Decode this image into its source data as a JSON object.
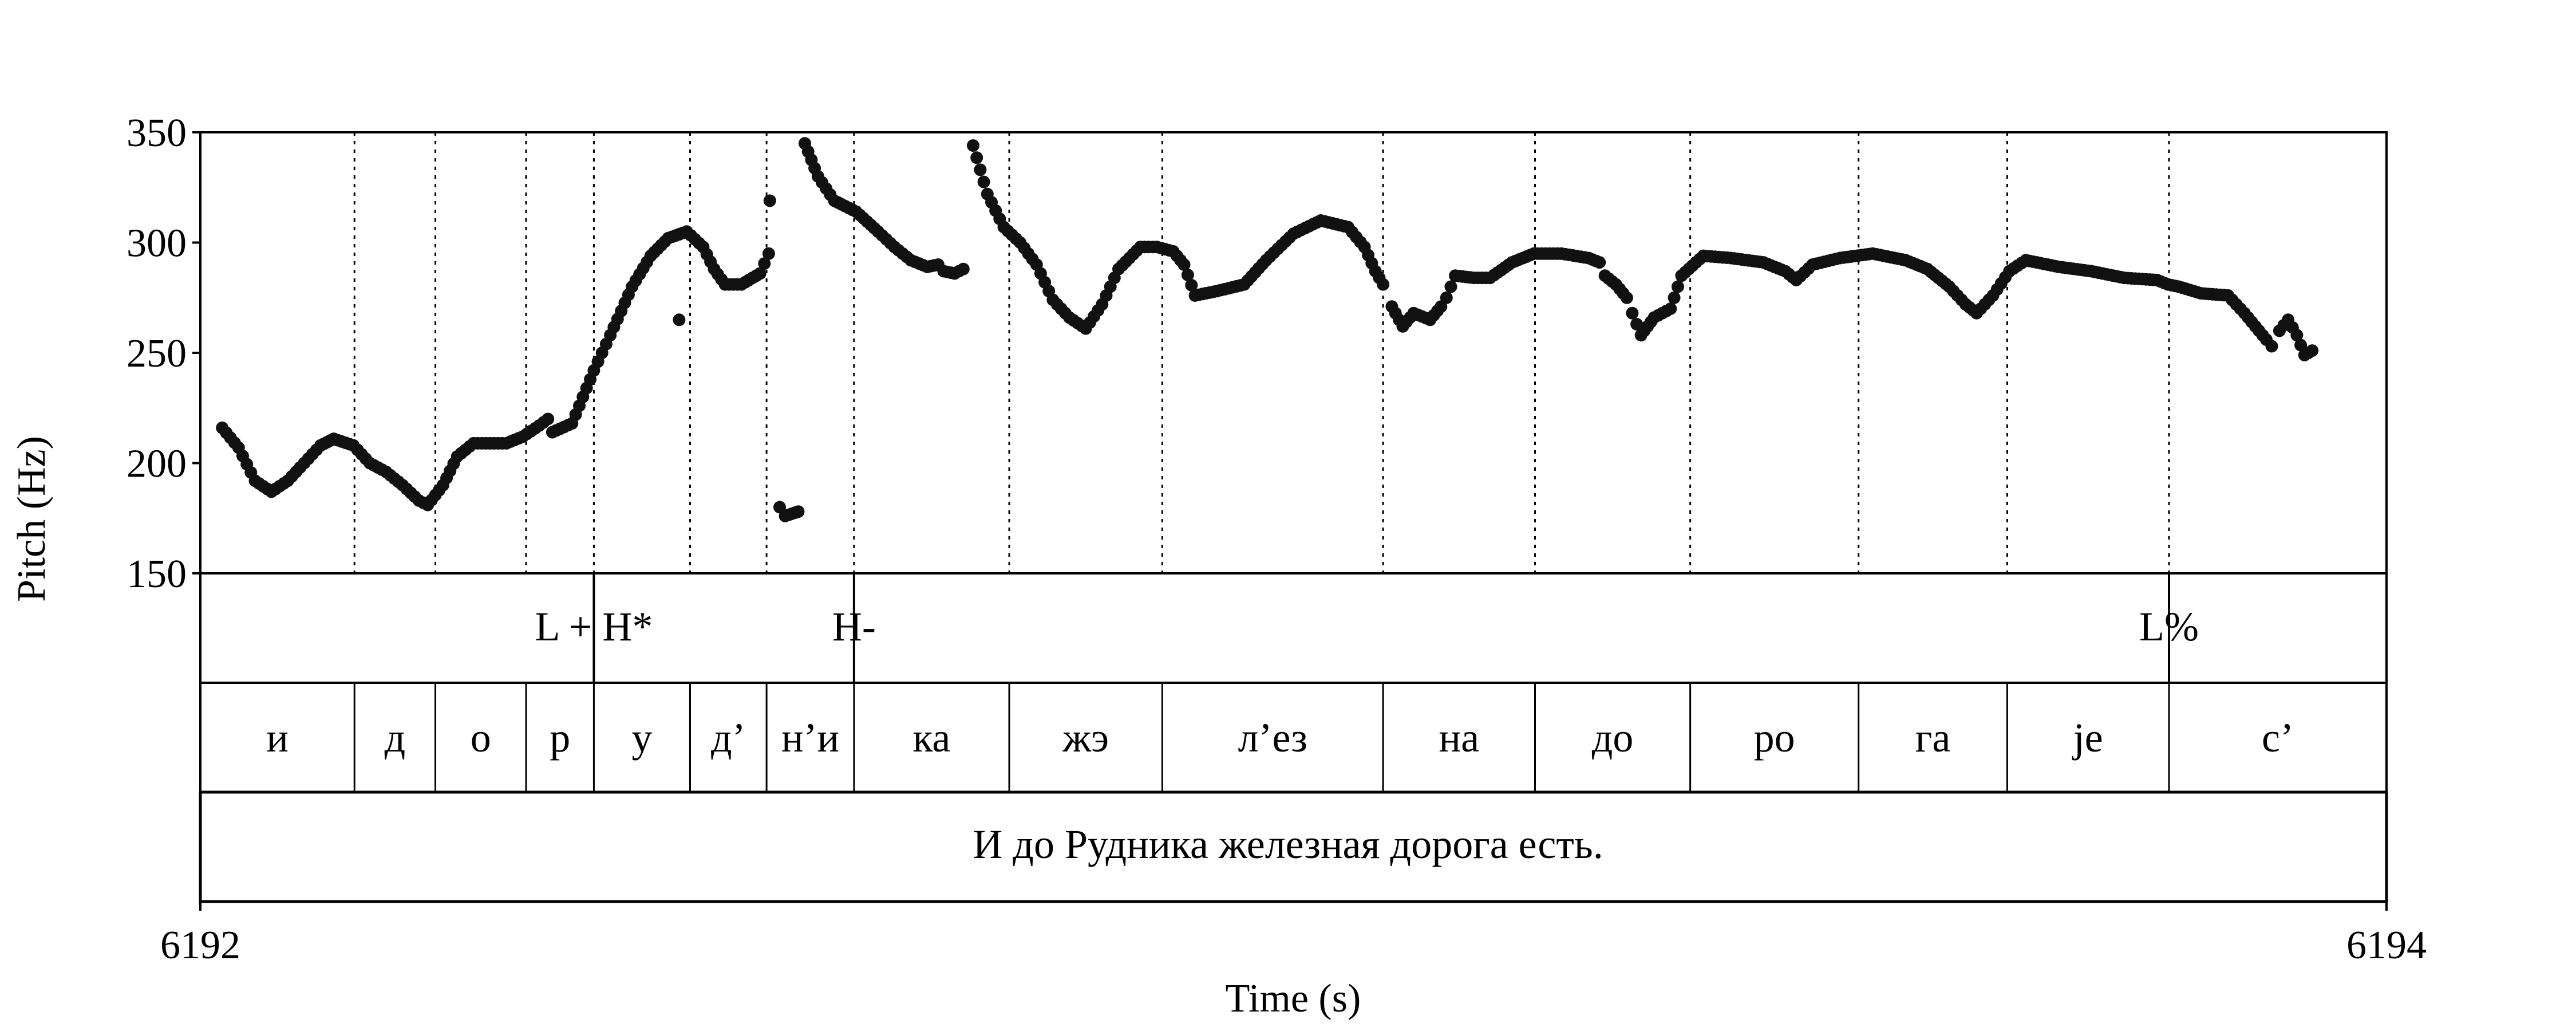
{
  "chart_data": {
    "type": "scatter",
    "xlabel": "Time (s)",
    "ylabel": "Pitch (Hz)",
    "xlim": [
      6192,
      6194
    ],
    "ylim": [
      150,
      350
    ],
    "x_ticks": [
      {
        "value": 6192,
        "label": "6192"
      },
      {
        "value": 6194,
        "label": "6194"
      }
    ],
    "y_ticks": [
      {
        "value": 150,
        "label": "150"
      },
      {
        "value": 200,
        "label": "200"
      },
      {
        "value": 250,
        "label": "250"
      },
      {
        "value": 300,
        "label": "300"
      },
      {
        "value": 350,
        "label": "350"
      }
    ],
    "boundaries": [
      6192.141,
      6192.215,
      6192.298,
      6192.36,
      6192.448,
      6192.518,
      6192.598,
      6192.74,
      6192.88,
      6193.082,
      6193.221,
      6193.363,
      6193.517,
      6193.653,
      6193.801
    ],
    "tones": [
      {
        "t": 6192.36,
        "label": "L + H*"
      },
      {
        "t": 6192.598,
        "label": "H-"
      },
      {
        "t": 6193.801,
        "label": "L%"
      }
    ],
    "syllables": [
      {
        "start": 6192.0,
        "end": 6192.141,
        "label": "и"
      },
      {
        "start": 6192.141,
        "end": 6192.215,
        "label": "д"
      },
      {
        "start": 6192.215,
        "end": 6192.298,
        "label": "о"
      },
      {
        "start": 6192.298,
        "end": 6192.36,
        "label": "р"
      },
      {
        "start": 6192.36,
        "end": 6192.448,
        "label": "у"
      },
      {
        "start": 6192.448,
        "end": 6192.518,
        "label": "д’"
      },
      {
        "start": 6192.518,
        "end": 6192.598,
        "label": "н’и"
      },
      {
        "start": 6192.598,
        "end": 6192.74,
        "label": "ка"
      },
      {
        "start": 6192.74,
        "end": 6192.88,
        "label": "жэ"
      },
      {
        "start": 6192.88,
        "end": 6193.082,
        "label": "л’ез"
      },
      {
        "start": 6193.082,
        "end": 6193.221,
        "label": "на"
      },
      {
        "start": 6193.221,
        "end": 6193.363,
        "label": "до"
      },
      {
        "start": 6193.363,
        "end": 6193.517,
        "label": "ро"
      },
      {
        "start": 6193.517,
        "end": 6193.653,
        "label": "га"
      },
      {
        "start": 6193.653,
        "end": 6193.801,
        "label": "je"
      },
      {
        "start": 6193.801,
        "end": 6194.0,
        "label": "с’"
      }
    ],
    "sentence": "И до Рудника железная дорога есть.",
    "pitch_anchors": [
      [
        6192.02,
        216
      ],
      [
        6192.035,
        207
      ],
      [
        6192.05,
        192
      ],
      [
        6192.065,
        187
      ],
      [
        6192.08,
        192
      ],
      [
        6192.095,
        200
      ],
      [
        6192.11,
        208
      ],
      [
        6192.122,
        211
      ],
      [
        6192.14,
        208
      ],
      [
        6192.155,
        200
      ],
      [
        6192.17,
        196
      ],
      [
        6192.185,
        190
      ],
      [
        6192.2,
        183
      ],
      [
        6192.208,
        181
      ],
      [
        6192.222,
        190
      ],
      [
        6192.235,
        203
      ],
      [
        6192.25,
        209
      ],
      [
        6192.265,
        209
      ],
      [
        6192.28,
        209
      ],
      [
        6192.295,
        212
      ],
      [
        6192.31,
        217
      ],
      [
        6192.318,
        220
      ],
      [
        6192.322,
        214
      ],
      [
        6192.34,
        218
      ],
      [
        6192.36,
        242
      ],
      [
        6192.375,
        258
      ],
      [
        6192.395,
        280
      ],
      [
        6192.412,
        294
      ],
      [
        6192.428,
        302
      ],
      [
        6192.445,
        305
      ],
      [
        6192.46,
        298
      ],
      [
        6192.47,
        288
      ],
      [
        6192.48,
        281
      ],
      [
        6192.495,
        281
      ],
      [
        6192.512,
        286
      ],
      [
        6192.52,
        295
      ]
    ],
    "pitch_segments": [
      [
        [
          6192.438,
          265
        ]
      ],
      [
        [
          6192.521,
          319
        ]
      ],
      [
        [
          6192.53,
          180
        ],
        [
          6192.535,
          176
        ],
        [
          6192.541,
          177
        ],
        [
          6192.547,
          178
        ]
      ],
      [
        [
          6192.553,
          345
        ],
        [
          6192.565,
          330
        ],
        [
          6192.58,
          319
        ],
        [
          6192.6,
          314
        ],
        [
          6192.62,
          305
        ],
        [
          6192.635,
          298
        ],
        [
          6192.65,
          292
        ],
        [
          6192.665,
          289
        ],
        [
          6192.675,
          290
        ],
        [
          6192.68,
          287
        ],
        [
          6192.69,
          286
        ],
        [
          6192.698,
          288
        ]
      ],
      [
        [
          6192.707,
          344
        ],
        [
          6192.72,
          322
        ],
        [
          6192.735,
          307
        ],
        [
          6192.75,
          300
        ],
        [
          6192.765,
          290
        ],
        [
          6192.78,
          274
        ],
        [
          6192.795,
          266
        ],
        [
          6192.81,
          261
        ],
        [
          6192.825,
          272
        ],
        [
          6192.84,
          288
        ],
        [
          6192.86,
          298
        ],
        [
          6192.875,
          298
        ],
        [
          6192.89,
          296
        ],
        [
          6192.9,
          290
        ],
        [
          6192.91,
          276
        ],
        [
          6192.93,
          278
        ],
        [
          6192.955,
          281
        ],
        [
          6192.975,
          292
        ],
        [
          6193.0,
          304
        ],
        [
          6193.025,
          310
        ],
        [
          6193.05,
          307
        ],
        [
          6193.065,
          298
        ],
        [
          6193.075,
          287
        ],
        [
          6193.082,
          281
        ]
      ],
      [
        [
          6193.09,
          271
        ],
        [
          6193.1,
          262
        ],
        [
          6193.11,
          268
        ],
        [
          6193.125,
          265
        ],
        [
          6193.135,
          271
        ],
        [
          6193.14,
          275
        ],
        [
          6193.148,
          285
        ],
        [
          6193.165,
          284
        ],
        [
          6193.18,
          284
        ],
        [
          6193.2,
          291
        ],
        [
          6193.22,
          295
        ],
        [
          6193.245,
          295
        ],
        [
          6193.27,
          293
        ],
        [
          6193.28,
          291
        ],
        [
          6193.285,
          285
        ],
        [
          6193.295,
          281
        ],
        [
          6193.305,
          275
        ],
        [
          6193.31,
          268
        ],
        [
          6193.318,
          258
        ],
        [
          6193.33,
          266
        ],
        [
          6193.345,
          270
        ],
        [
          6193.355,
          285
        ],
        [
          6193.375,
          294
        ],
        [
          6193.4,
          293
        ],
        [
          6193.43,
          291
        ],
        [
          6193.45,
          287
        ],
        [
          6193.46,
          283
        ],
        [
          6193.475,
          290
        ],
        [
          6193.5,
          293
        ],
        [
          6193.53,
          295
        ],
        [
          6193.56,
          292
        ],
        [
          6193.58,
          288
        ],
        [
          6193.6,
          280
        ],
        [
          6193.615,
          272
        ],
        [
          6193.625,
          268
        ],
        [
          6193.64,
          276
        ],
        [
          6193.655,
          287
        ],
        [
          6193.67,
          292
        ],
        [
          6193.7,
          289
        ],
        [
          6193.73,
          287
        ],
        [
          6193.76,
          284
        ],
        [
          6193.79,
          283
        ],
        [
          6193.8,
          281
        ],
        [
          6193.81,
          280
        ],
        [
          6193.83,
          277
        ],
        [
          6193.855,
          276
        ],
        [
          6193.87,
          268
        ],
        [
          6193.88,
          262
        ],
        [
          6193.89,
          256
        ],
        [
          6193.895,
          253
        ]
      ],
      [
        [
          6193.902,
          260
        ],
        [
          6193.91,
          265
        ],
        [
          6193.918,
          258
        ],
        [
          6193.925,
          249
        ],
        [
          6193.932,
          251
        ]
      ]
    ]
  }
}
